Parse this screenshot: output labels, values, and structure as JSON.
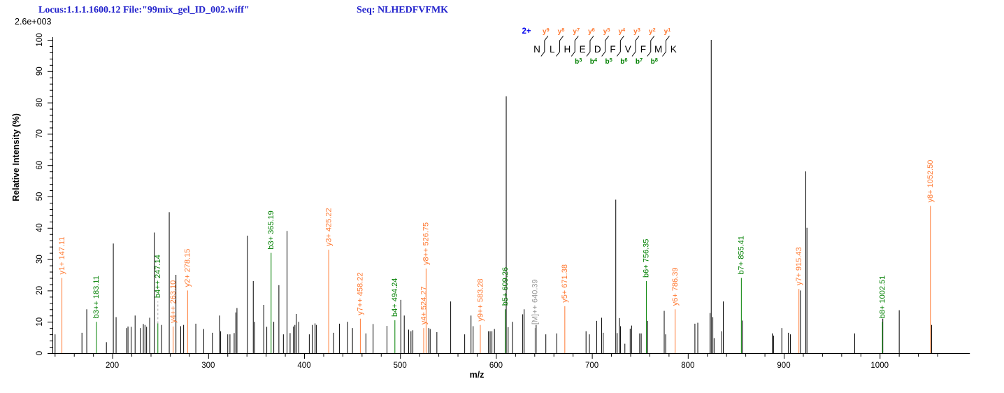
{
  "header": {
    "locus_file": "Locus:1.1.1.1600.12 File:\"99mix_gel_ID_002.wiff\"",
    "seq": "Seq: NLHEDFVFMK"
  },
  "peptide": {
    "charge": "2+",
    "residues": [
      "N",
      "L",
      "H",
      "E",
      "D",
      "F",
      "V",
      "F",
      "M",
      "K"
    ],
    "y_ions": [
      {
        "name": "y",
        "num": "9",
        "boundary": 1
      },
      {
        "name": "y",
        "num": "8",
        "boundary": 2
      },
      {
        "name": "y",
        "num": "7",
        "boundary": 3
      },
      {
        "name": "y",
        "num": "6",
        "boundary": 4
      },
      {
        "name": "y",
        "num": "5",
        "boundary": 5
      },
      {
        "name": "y",
        "num": "4",
        "boundary": 6
      },
      {
        "name": "y",
        "num": "3",
        "boundary": 7
      },
      {
        "name": "y",
        "num": "2",
        "boundary": 8
      },
      {
        "name": "y",
        "num": "1",
        "boundary": 9
      }
    ],
    "b_ions": [
      {
        "name": "b",
        "num": "3",
        "boundary": 3
      },
      {
        "name": "b",
        "num": "4",
        "boundary": 4
      },
      {
        "name": "b",
        "num": "5",
        "boundary": 5
      },
      {
        "name": "b",
        "num": "6",
        "boundary": 6
      },
      {
        "name": "b",
        "num": "7",
        "boundary": 7
      },
      {
        "name": "b",
        "num": "8",
        "boundary": 8
      }
    ]
  },
  "chart_data": {
    "type": "bar",
    "subtype": "ms2-fragment-spectrum",
    "x_axis": {
      "label": "m/z",
      "major_ticks": [
        200,
        300,
        400,
        500,
        600,
        700,
        800,
        900,
        1000
      ],
      "minor_step": 20,
      "minor_start": 140,
      "minor_end": 1060,
      "mz_min": 137.6,
      "mz_max": 1094
    },
    "y_axis": {
      "label": "Relative Intensity (%)",
      "major_ticks": [
        0,
        10,
        20,
        30,
        40,
        50,
        60,
        70,
        80,
        90,
        100
      ],
      "minor_step": 2,
      "ylim": [
        0,
        100
      ],
      "max_intensity_label": "2.6e+003"
    },
    "legend": "none",
    "grid": false,
    "colors": {
      "y_ion": "#ff7a33",
      "b_ion": "#008000",
      "precursor": "#999999",
      "unassigned": "#000000",
      "charge_badge": "#0000ee",
      "header_blue": "#2222cc",
      "connector_dash": "#aaaaaa"
    },
    "annotated_peaks": [
      {
        "label": "y1+ 147.11",
        "mz": 147.11,
        "intensity": 24,
        "type": "y_ion"
      },
      {
        "label": "b3++ 183.11",
        "mz": 183.11,
        "intensity": 10,
        "type": "b_ion"
      },
      {
        "label": "b4++ 247.14",
        "mz": 247.14,
        "intensity": 9.5,
        "type": "b_ion",
        "label_at": 16.5,
        "dashed_connector": true
      },
      {
        "label": "y4++ 263.10",
        "mz": 263.1,
        "intensity": 8.5,
        "type": "y_ion"
      },
      {
        "label": "y2+ 278.15",
        "mz": 278.15,
        "intensity": 20,
        "type": "y_ion"
      },
      {
        "label": "b3+ 365.19",
        "mz": 365.19,
        "intensity": 32,
        "type": "b_ion"
      },
      {
        "label": "y3+ 425.22",
        "mz": 425.22,
        "intensity": 33,
        "type": "y_ion"
      },
      {
        "label": "y7++ 458.22",
        "mz": 458.22,
        "intensity": 11,
        "type": "y_ion"
      },
      {
        "label": "b4+ 494.24",
        "mz": 494.24,
        "intensity": 10.5,
        "type": "b_ion"
      },
      {
        "label": "y4+ 524.27",
        "mz": 524.27,
        "intensity": 8,
        "type": "y_ion"
      },
      {
        "label": "y8++ 526.75",
        "mz": 526.75,
        "intensity": 27,
        "type": "y_ion"
      },
      {
        "label": "y9++ 583.28",
        "mz": 583.28,
        "intensity": 9,
        "type": "y_ion"
      },
      {
        "label": "b5+ 609.26",
        "mz": 609.26,
        "intensity": 14,
        "type": "b_ion"
      },
      {
        "label": "[M]++ 640.39",
        "mz": 640.39,
        "intensity": 8,
        "type": "precursor"
      },
      {
        "label": "y5+ 671.38",
        "mz": 671.38,
        "intensity": 15,
        "type": "y_ion"
      },
      {
        "label": "b6+ 756.35",
        "mz": 756.35,
        "intensity": 23,
        "type": "b_ion"
      },
      {
        "label": "y6+ 786.39",
        "mz": 786.39,
        "intensity": 14,
        "type": "y_ion"
      },
      {
        "label": "b7+ 855.41",
        "mz": 855.41,
        "intensity": 24,
        "type": "b_ion"
      },
      {
        "label": "y7+ 915.43",
        "mz": 915.43,
        "intensity": 20.5,
        "type": "y_ion"
      },
      {
        "label": "b8+ 1002.51",
        "mz": 1002.51,
        "intensity": 10,
        "type": "b_ion"
      },
      {
        "label": "y8+ 1052.50",
        "mz": 1052.5,
        "intensity": 47,
        "type": "y_ion"
      }
    ],
    "unassigned_peaks": [
      [
        140,
        6
      ],
      [
        168,
        6.5
      ],
      [
        173,
        14
      ],
      [
        193.5,
        3.5
      ],
      [
        200.7,
        35
      ],
      [
        203.6,
        11.5
      ],
      [
        214.5,
        8
      ],
      [
        216,
        8.5
      ],
      [
        219.3,
        8.4
      ],
      [
        223.4,
        12
      ],
      [
        228.9,
        8
      ],
      [
        232,
        9.3
      ],
      [
        233.7,
        9
      ],
      [
        235.4,
        8.4
      ],
      [
        238.6,
        11.3
      ],
      [
        243.4,
        38.5
      ],
      [
        251,
        9
      ],
      [
        259,
        45
      ],
      [
        266,
        25
      ],
      [
        271,
        8.6
      ],
      [
        274,
        9
      ],
      [
        286.7,
        9.4
      ],
      [
        295,
        7.7
      ],
      [
        304,
        6.5
      ],
      [
        311.4,
        12
      ],
      [
        312.6,
        7
      ],
      [
        320,
        6
      ],
      [
        322.3,
        6
      ],
      [
        326.7,
        6.4
      ],
      [
        328.4,
        13
      ],
      [
        329.6,
        14.4
      ],
      [
        340.5,
        37.5
      ],
      [
        346.6,
        23
      ],
      [
        348,
        10
      ],
      [
        357.5,
        15.4
      ],
      [
        360.7,
        8.4
      ],
      [
        368,
        10
      ],
      [
        373.3,
        21.7
      ],
      [
        378,
        6
      ],
      [
        381.8,
        39
      ],
      [
        385,
        6.4
      ],
      [
        388.5,
        8.5
      ],
      [
        390,
        9
      ],
      [
        391.5,
        12.5
      ],
      [
        394,
        10
      ],
      [
        405,
        6
      ],
      [
        408,
        9
      ],
      [
        411,
        9.5
      ],
      [
        412.3,
        9
      ],
      [
        430.4,
        6.5
      ],
      [
        436.5,
        9.4
      ],
      [
        445,
        10
      ],
      [
        450,
        8
      ],
      [
        464,
        6.3
      ],
      [
        471.5,
        9.3
      ],
      [
        486,
        8.7
      ],
      [
        500.4,
        17
      ],
      [
        504,
        12
      ],
      [
        508.6,
        7.5
      ],
      [
        511,
        7
      ],
      [
        513,
        7.3
      ],
      [
        529.5,
        8
      ],
      [
        531,
        7.7
      ],
      [
        538,
        6.7
      ],
      [
        552.4,
        16.5
      ],
      [
        567,
        6
      ],
      [
        573.6,
        12
      ],
      [
        575.8,
        8.6
      ],
      [
        591.8,
        7
      ],
      [
        593.5,
        7
      ],
      [
        595.4,
        7
      ],
      [
        598,
        7.7
      ],
      [
        610.3,
        82
      ],
      [
        612.3,
        8.3
      ],
      [
        616.9,
        10
      ],
      [
        627.5,
        12.4
      ],
      [
        629,
        14
      ],
      [
        641.5,
        9
      ],
      [
        651.6,
        6
      ],
      [
        663,
        6.3
      ],
      [
        693.5,
        7
      ],
      [
        697,
        6
      ],
      [
        704.6,
        10.3
      ],
      [
        709.7,
        11.3
      ],
      [
        711.4,
        6.5
      ],
      [
        724.5,
        49
      ],
      [
        726,
        6.4
      ],
      [
        728.4,
        11.2
      ],
      [
        729.5,
        8.6
      ],
      [
        734,
        3
      ],
      [
        739.5,
        7.8
      ],
      [
        741,
        8.8
      ],
      [
        749.4,
        6.3
      ],
      [
        751,
        6.3
      ],
      [
        757.7,
        10.3
      ],
      [
        775,
        13.5
      ],
      [
        776.5,
        6
      ],
      [
        807,
        9.4
      ],
      [
        810,
        9.7
      ],
      [
        822.8,
        12.8
      ],
      [
        824,
        100
      ],
      [
        825.7,
        11.5
      ],
      [
        827,
        4.8
      ],
      [
        835,
        7
      ],
      [
        836.6,
        16.5
      ],
      [
        856.5,
        10.4
      ],
      [
        887.6,
        6.3
      ],
      [
        889,
        5.6
      ],
      [
        897.6,
        8
      ],
      [
        904.5,
        6.5
      ],
      [
        906.5,
        6
      ],
      [
        917,
        20
      ],
      [
        922.6,
        58
      ],
      [
        923.8,
        40
      ],
      [
        973.6,
        6.3
      ],
      [
        1002.9,
        11
      ],
      [
        1020,
        13.7
      ],
      [
        1053.8,
        9
      ]
    ]
  }
}
